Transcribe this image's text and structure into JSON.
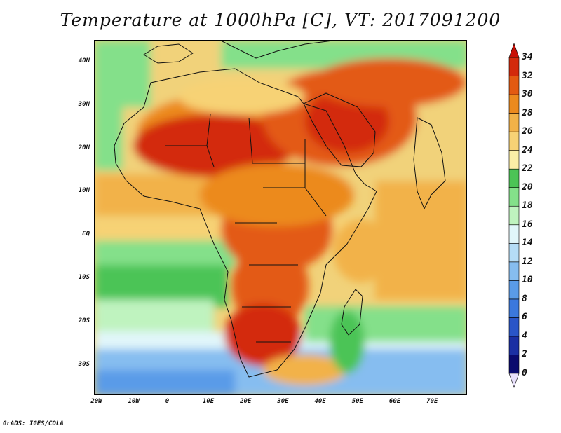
{
  "title": "Temperature at 1000hPa [C], VT: 2017091200",
  "credit": "GrADS: IGES/COLA",
  "map": {
    "lon_range": [
      -21,
      79
    ],
    "lat_range": [
      -37,
      45
    ],
    "lat_ticks": [
      {
        "value": 40,
        "label": "40N"
      },
      {
        "value": 30,
        "label": "30N"
      },
      {
        "value": 20,
        "label": "20N"
      },
      {
        "value": 10,
        "label": "10N"
      },
      {
        "value": 0,
        "label": "EQ"
      },
      {
        "value": -10,
        "label": "10S"
      },
      {
        "value": -20,
        "label": "20S"
      },
      {
        "value": -30,
        "label": "30S"
      }
    ],
    "lon_ticks": [
      {
        "value": -20,
        "label": "20W"
      },
      {
        "value": -10,
        "label": "10W"
      },
      {
        "value": 0,
        "label": "0"
      },
      {
        "value": 10,
        "label": "10E"
      },
      {
        "value": 20,
        "label": "20E"
      },
      {
        "value": 30,
        "label": "30E"
      },
      {
        "value": 40,
        "label": "40E"
      },
      {
        "value": 50,
        "label": "50E"
      },
      {
        "value": 60,
        "label": "60E"
      },
      {
        "value": 70,
        "label": "70E"
      }
    ]
  },
  "colorbar": {
    "levels": [
      0,
      2,
      4,
      6,
      8,
      10,
      12,
      14,
      16,
      18,
      20,
      22,
      24,
      26,
      28,
      30,
      32,
      34
    ],
    "colors": [
      "#0a0a6e",
      "#1b2fa3",
      "#2a55c8",
      "#3b78dd",
      "#5a9be8",
      "#86bdf0",
      "#b5dcf6",
      "#e1f6fa",
      "#bff3bf",
      "#84e08a",
      "#4cc456",
      "#fbeea6",
      "#f7d275",
      "#f2b248",
      "#ec8a1e",
      "#e35a12",
      "#d32a0c"
    ],
    "under_color": "#e8e0fb",
    "over_color": "#c81006"
  }
}
